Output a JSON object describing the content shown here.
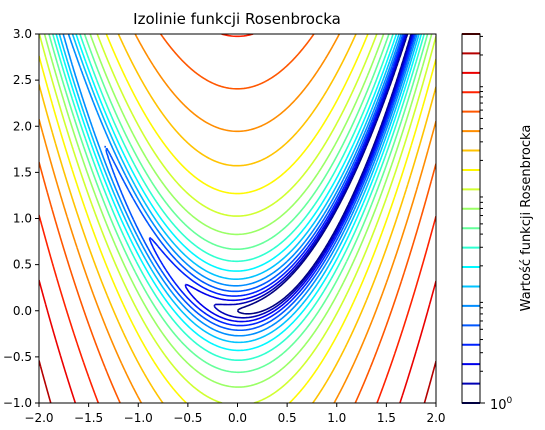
{
  "chart_data": {
    "type": "contour",
    "title": "Izolinie funkcji Rosenbrocka",
    "xlabel": "",
    "ylabel": "",
    "function": "rosenbrock",
    "xlim": [
      -2.0,
      2.0
    ],
    "ylim": [
      -1.0,
      3.0
    ],
    "x_ticks": [
      "−2.0",
      "−1.5",
      "−1.0",
      "−0.5",
      "0.0",
      "0.5",
      "1.0",
      "1.5",
      "2.0"
    ],
    "y_ticks": [
      "−1.0",
      "−0.5",
      "0.0",
      "0.5",
      "1.0",
      "1.5",
      "2.0",
      "2.5",
      "3.0"
    ],
    "x_tick_values": [
      -2.0,
      -1.5,
      -1.0,
      -0.5,
      0.0,
      0.5,
      1.0,
      1.5,
      2.0
    ],
    "y_tick_values": [
      -1.0,
      -0.5,
      0.0,
      0.5,
      1.0,
      1.5,
      2.0,
      2.5,
      3.0
    ],
    "level_log10_min": 0,
    "level_log10_max": 3.5,
    "level_count": 20,
    "colormap": "jet",
    "colorbar": {
      "label": "Wartość funkcji Rosenbrocka",
      "tick_label_base": "10",
      "tick_label_exp": "0",
      "scale": "log"
    },
    "grid": false
  }
}
